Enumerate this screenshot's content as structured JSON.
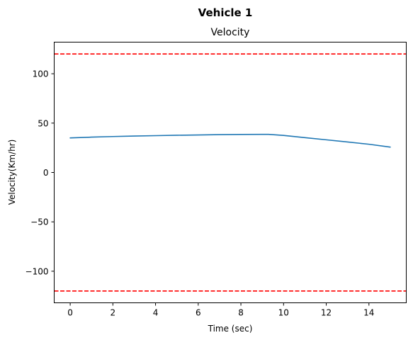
{
  "chart_data": {
    "type": "line",
    "suptitle": "Vehicle 1",
    "title": "Velocity",
    "xlabel": "Time (sec)",
    "ylabel": "Velocity(Km/hr)",
    "xlim": [
      -0.75,
      15.75
    ],
    "ylim": [
      -132,
      132
    ],
    "xticks": [
      0,
      2,
      4,
      6,
      8,
      10,
      12,
      14
    ],
    "xtick_labels": [
      "0",
      "2",
      "4",
      "6",
      "8",
      "10",
      "12",
      "14"
    ],
    "yticks": [
      100,
      50,
      0,
      -50,
      -100
    ],
    "ytick_labels": [
      "100",
      "50",
      "0",
      "−50",
      "−100"
    ],
    "grid": false,
    "series": [
      {
        "name": "velocity",
        "color": "#1f77b4",
        "x": [
          0,
          1,
          2,
          3,
          4,
          5,
          6,
          7,
          8,
          9,
          9.3,
          10,
          11,
          12,
          13,
          14,
          15
        ],
        "y": [
          35,
          35.8,
          36.4,
          36.9,
          37.3,
          37.7,
          38.0,
          38.3,
          38.5,
          38.6,
          38.6,
          37.5,
          35.3,
          33.1,
          30.9,
          28.6,
          25.7
        ]
      }
    ],
    "hlines": [
      {
        "name": "upper-limit",
        "y": 120,
        "color": "#ff0000",
        "style": "dashed"
      },
      {
        "name": "lower-limit",
        "y": -120,
        "color": "#ff0000",
        "style": "dashed"
      }
    ]
  }
}
